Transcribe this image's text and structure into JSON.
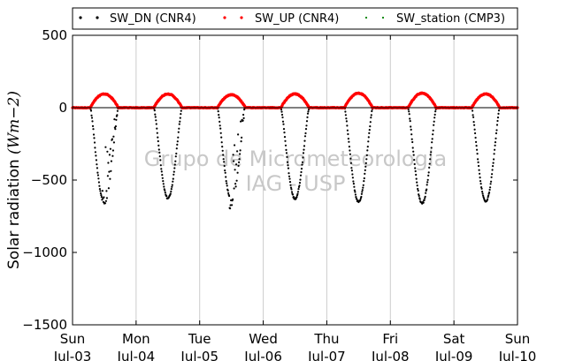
{
  "chart_data": {
    "type": "scatter",
    "title": "",
    "ylabel": "Solar radiation (Wm-2)",
    "ylabel_parts": {
      "text": "Solar radiation ",
      "unit": "(Wm−2)"
    },
    "ylim": [
      -1500,
      500
    ],
    "yticks": [
      500,
      0,
      -500,
      -1000,
      -1500
    ],
    "ytick_labels": [
      "500",
      "0",
      "−500",
      "−1000",
      "−1500"
    ],
    "xlim_days": [
      0,
      7
    ],
    "xticks": [
      {
        "day": "Sun",
        "date": "Jul-03"
      },
      {
        "day": "Mon",
        "date": "Jul-04"
      },
      {
        "day": "Tue",
        "date": "Jul-05"
      },
      {
        "day": "Wed",
        "date": "Jul-06"
      },
      {
        "day": "Thu",
        "date": "Jul-07"
      },
      {
        "day": "Fri",
        "date": "Jul-08"
      },
      {
        "day": "Sat",
        "date": "Jul-09"
      },
      {
        "day": "Sun",
        "date": "Jul-10"
      }
    ],
    "grid": "vertical",
    "legend_position": "top",
    "legend": [
      {
        "label": "SW_DN (CNR4)",
        "color": "#000000"
      },
      {
        "label": "SW_UP (CNR4)",
        "color": "#ff0000"
      },
      {
        "label": "SW_station (CMP3)",
        "color": "#008000"
      }
    ],
    "daily_peaks": [
      {
        "date": "Jul-03",
        "sw_dn_min": -660,
        "sw_up_max": 95
      },
      {
        "date": "Jul-04",
        "sw_dn_min": -625,
        "sw_up_max": 95
      },
      {
        "date": "Jul-05",
        "sw_dn_min": -640,
        "sw_up_max": 90
      },
      {
        "date": "Jul-06",
        "sw_dn_min": -630,
        "sw_up_max": 95
      },
      {
        "date": "Jul-07",
        "sw_dn_min": -650,
        "sw_up_max": 100
      },
      {
        "date": "Jul-08",
        "sw_dn_min": -660,
        "sw_up_max": 100
      },
      {
        "date": "Jul-09",
        "sw_dn_min": -645,
        "sw_up_max": 95
      }
    ],
    "watermark": [
      "Grupo de Micrometeorologia",
      "IAG - USP"
    ]
  }
}
